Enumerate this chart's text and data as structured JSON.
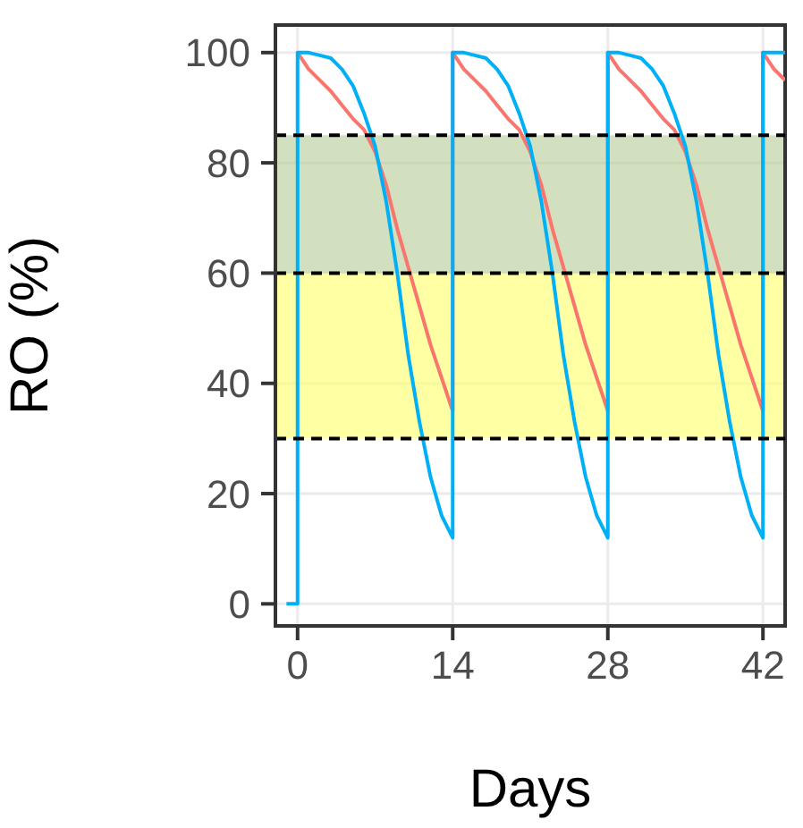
{
  "chart_data": {
    "type": "line",
    "xlabel": "Days",
    "ylabel": "RO (%)",
    "xlim": [
      -2,
      44
    ],
    "xticks": [
      0,
      14,
      28,
      42
    ],
    "ylim": [
      -4,
      105
    ],
    "yticks": [
      0,
      20,
      40,
      60,
      80,
      100
    ],
    "grid": true,
    "line_style": "solid",
    "marker": "none",
    "bands": [
      {
        "axis": "y",
        "from": 60,
        "to": 85,
        "color": "#b5cc96"
      },
      {
        "axis": "y",
        "from": 30,
        "to": 60,
        "color": "#ffff66"
      }
    ],
    "ref_lines": [
      {
        "axis": "y",
        "value": 85,
        "line_style": "dashed",
        "color": "#000000"
      },
      {
        "axis": "y",
        "value": 60,
        "line_style": "dashed",
        "color": "#000000"
      },
      {
        "axis": "y",
        "value": 30,
        "line_style": "dashed",
        "color": "#000000"
      }
    ],
    "series": [
      {
        "color": "#f8766d",
        "x": [
          0,
          1,
          2,
          3,
          4,
          5,
          6,
          7,
          8,
          9,
          10,
          11,
          12,
          13,
          14,
          14,
          15,
          16,
          17,
          18,
          19,
          20,
          21,
          22,
          23,
          24,
          25,
          26,
          27,
          28,
          28,
          29,
          30,
          31,
          32,
          33,
          34,
          35,
          36,
          37,
          38,
          39,
          40,
          41,
          42,
          42,
          43,
          44
        ],
        "values": [
          100,
          97,
          95,
          93,
          90.5,
          88,
          86,
          82,
          76,
          68,
          61,
          54,
          47,
          41,
          35,
          100,
          97,
          95,
          93,
          90.5,
          88,
          86,
          82,
          76,
          68,
          61,
          54,
          47,
          41,
          35,
          100,
          97,
          95,
          93,
          90.5,
          88,
          86,
          82,
          76,
          68,
          61,
          54,
          47,
          41,
          35,
          100,
          97,
          95
        ]
      },
      {
        "color": "#00b0f6",
        "x": [
          -1,
          0,
          0,
          1,
          2,
          3,
          4,
          5,
          6,
          7,
          8,
          9,
          10,
          11,
          12,
          13,
          14,
          14,
          15,
          16,
          17,
          18,
          19,
          20,
          21,
          22,
          23,
          24,
          25,
          26,
          27,
          28,
          28,
          29,
          30,
          31,
          32,
          33,
          34,
          35,
          36,
          37,
          38,
          39,
          40,
          41,
          42,
          42,
          43,
          44
        ],
        "values": [
          0,
          0,
          100,
          100,
          99.5,
          99,
          97,
          94,
          89,
          83,
          73,
          60,
          45,
          33,
          23,
          16,
          12,
          100,
          100,
          99.5,
          99,
          97,
          94,
          89,
          83,
          73,
          60,
          45,
          33,
          23,
          16,
          12,
          100,
          100,
          99.5,
          99,
          97,
          94,
          89,
          83,
          73,
          60,
          45,
          33,
          23,
          16,
          12,
          100,
          100,
          100
        ]
      }
    ]
  }
}
